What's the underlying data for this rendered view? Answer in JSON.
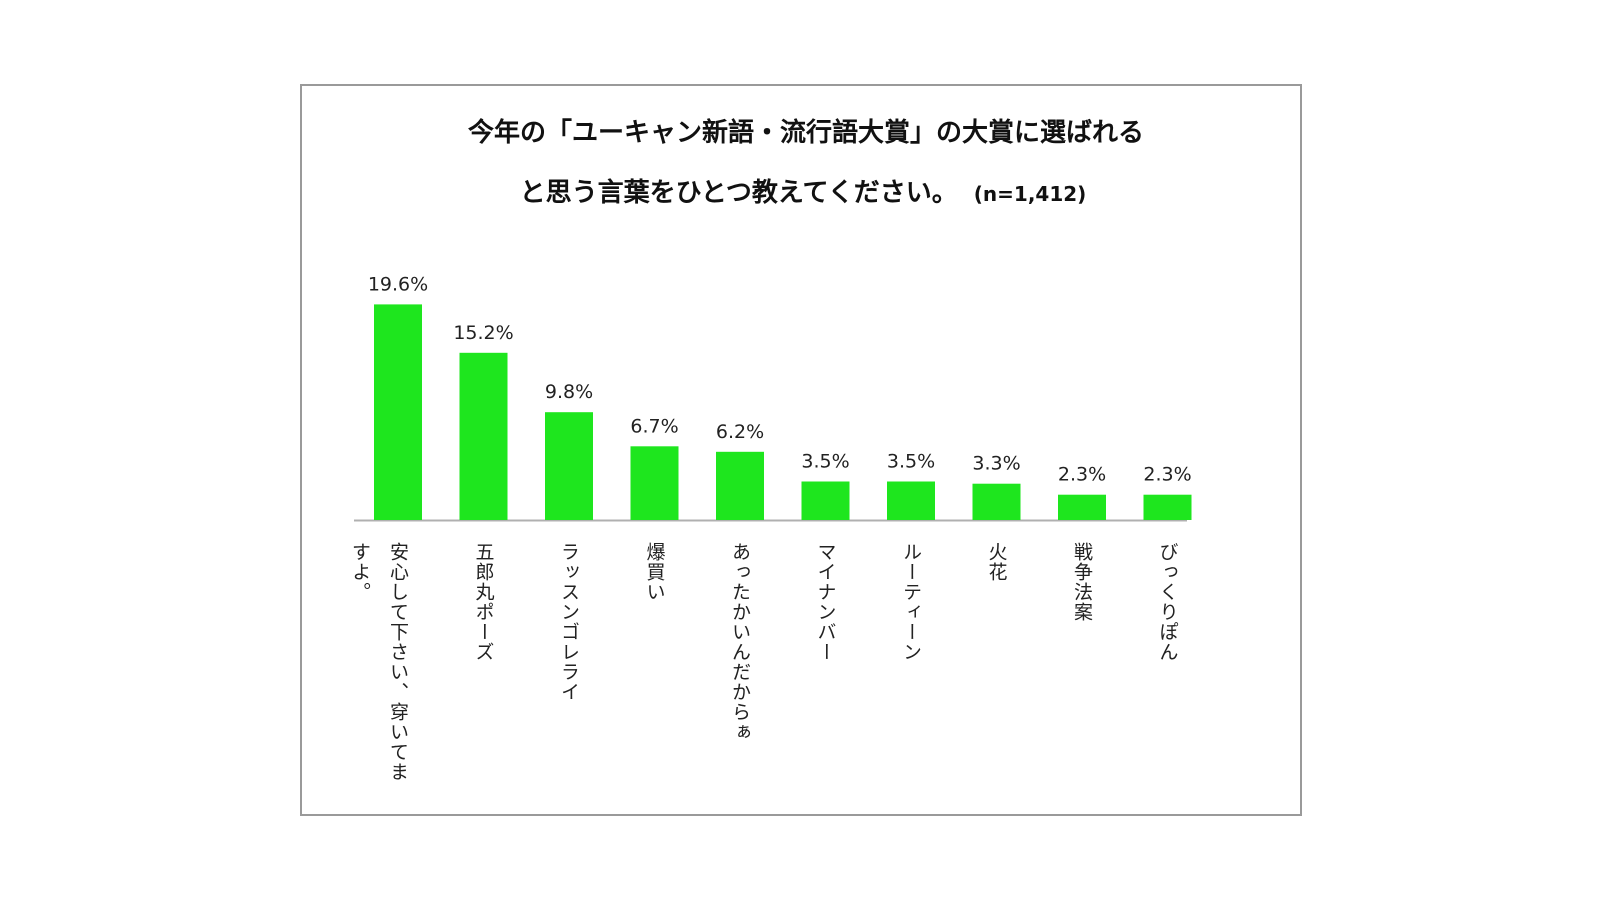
{
  "chart_data": {
    "type": "bar",
    "title_lines": [
      "今年の「ユーキャン新語・流行語大賞」の大賞に選ばれる",
      "と思う言葉をひとつ教えてください。"
    ],
    "sample_size": "(n=1,412)",
    "categories": [
      "安心して下さい、穿いてますよ。",
      "五郎丸ポーズ",
      "ラッスンゴレライ",
      "爆買い",
      "あったかいんだからぁ",
      "マイナンバー",
      "ルーティーン",
      "火花",
      "戦争法案",
      "びっくりぽん"
    ],
    "values": [
      19.6,
      15.2,
      9.8,
      6.7,
      6.2,
      3.5,
      3.5,
      3.3,
      2.3,
      2.3
    ],
    "value_labels": [
      "19.6%",
      "15.2%",
      "9.8%",
      "6.7%",
      "6.2%",
      "3.5%",
      "3.5%",
      "3.3%",
      "2.3%",
      "2.3%"
    ],
    "ylim": [
      0,
      20
    ],
    "bar_color": "#1ee61e",
    "axis_color": "#b0b0b0",
    "grid": false,
    "legend": "none"
  }
}
